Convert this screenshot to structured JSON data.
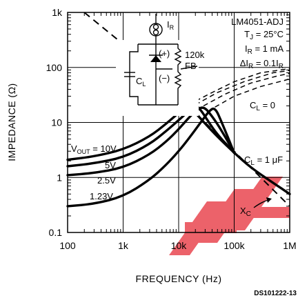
{
  "chart_data": {
    "type": "line",
    "title": "",
    "xlabel": "FREQUENCY (Hz)",
    "ylabel": "IMPEDANCE (Ω)",
    "xscale": "log",
    "yscale": "log",
    "xlim": [
      100,
      1000000
    ],
    "ylim": [
      0.1,
      1000
    ],
    "x_ticks": [
      {
        "value": 100,
        "label": "100"
      },
      {
        "value": 1000,
        "label": "1k"
      },
      {
        "value": 10000,
        "label": "10k"
      },
      {
        "value": 100000,
        "label": "100k"
      },
      {
        "value": 1000000,
        "label": "1M"
      }
    ],
    "y_ticks": [
      {
        "value": 0.1,
        "label": "0.1"
      },
      {
        "value": 1,
        "label": "1"
      },
      {
        "value": 10,
        "label": "10"
      },
      {
        "value": 100,
        "label": "100"
      },
      {
        "value": 1000,
        "label": "1k"
      }
    ],
    "grid": true,
    "conditions": {
      "part": "LM4051-ADJ",
      "tj_prefix": "T",
      "tj_sub": "J",
      "tj_value": " = 25°C",
      "ir_prefix": "I",
      "ir_sub": "R",
      "ir_value": " = 1 mA",
      "dir_prefix": "ΔI",
      "dir_sub": "R",
      "dir_value": " = 0.1I",
      "dir_sub2": "R"
    },
    "series": [
      {
        "label": "V",
        "label_sub": "OUT",
        "label_tail": " = 10V",
        "x": [
          100,
          300,
          1000,
          3000,
          6000,
          10000,
          15000,
          20000,
          30000,
          50000,
          100000,
          200000,
          500000,
          1000000
        ],
        "y": [
          2.1,
          2.4,
          3.2,
          5.5,
          9.5,
          15,
          21,
          15,
          9.5,
          5.5,
          2.8,
          1.5,
          0.8,
          0.5
        ]
      },
      {
        "label": "5V",
        "x": [
          100,
          300,
          1000,
          3000,
          6000,
          10000,
          15000,
          20000,
          25000,
          35000,
          50000,
          100000
        ],
        "y": [
          1.6,
          1.8,
          2.3,
          4,
          7,
          11,
          16,
          21,
          17,
          10,
          6,
          2.8
        ]
      },
      {
        "label": "2.5V",
        "x": [
          100,
          300,
          1000,
          3000,
          6000,
          10000,
          15000,
          20000,
          28000,
          40000,
          60000,
          100000
        ],
        "y": [
          1.1,
          1.2,
          1.5,
          2.6,
          4.5,
          7.5,
          12,
          16,
          20,
          13,
          7,
          2.8
        ]
      },
      {
        "label": "1.23V",
        "x": [
          100,
          300,
          1000,
          3000,
          6000,
          10000,
          15000,
          25000,
          35000,
          45000,
          60000,
          100000
        ],
        "y": [
          0.3,
          0.33,
          0.45,
          0.9,
          1.7,
          3,
          5,
          10,
          16,
          19,
          10,
          2.8
        ]
      }
    ],
    "annotations": {
      "cl0_prefix": "C",
      "cl0_sub": "L",
      "cl0_value": " = 0",
      "cl1_prefix": "C",
      "cl1_sub": "L",
      "cl1_value": " = 1 μF",
      "xc_prefix": "X",
      "xc_sub": "C"
    },
    "schematic": {
      "ir_prefix": "I",
      "ir_sub": "R",
      "plus": "(+)",
      "minus": "(−)",
      "resistor": "120k",
      "fb": "FB",
      "cap_prefix": "C",
      "cap_sub": "L"
    }
  },
  "footer": "DS101222-13",
  "watermark_color": "#e8404a"
}
